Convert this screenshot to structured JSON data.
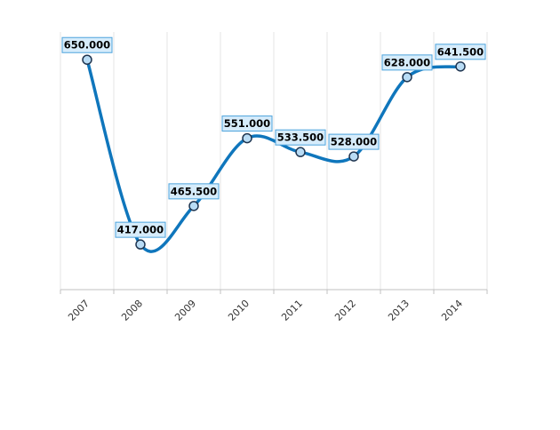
{
  "chart_data": {
    "type": "line",
    "categories": [
      "2007",
      "2008",
      "2009",
      "2010",
      "2011",
      "2012",
      "2013",
      "2014"
    ],
    "series": [
      {
        "values": [
          650.0,
          417.0,
          465.5,
          551.0,
          533.5,
          528.0,
          628.0,
          641.5
        ],
        "data_labels": [
          "650.000",
          "417.000",
          "465.500",
          "551.000",
          "533.500",
          "528.000",
          "628.000",
          "641.500"
        ]
      }
    ],
    "title": "",
    "xlabel": "",
    "ylabel": "",
    "ylim": [
      360,
      685
    ],
    "grid": "vertical",
    "smooth": true,
    "colors": {
      "line": "#0f76bc",
      "point_fill": "#b9dcf5",
      "point_stroke": "#1f3550",
      "label_fill": "#d6ecfb",
      "label_stroke": "#4da3dc"
    }
  }
}
